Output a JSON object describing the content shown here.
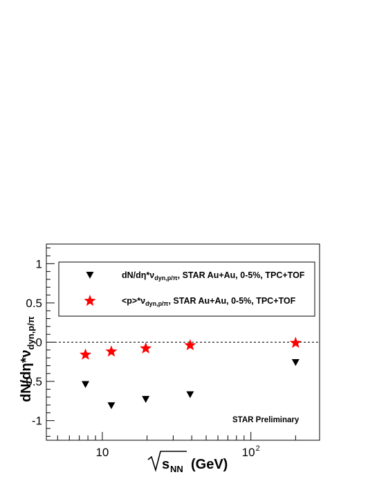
{
  "chart_data": {
    "type": "scatter",
    "xscale": "log",
    "xlim": [
      4.2,
      290
    ],
    "ylim": [
      -1.25,
      1.25
    ],
    "xticks": [
      {
        "value": 10,
        "label": "10"
      },
      {
        "value": 100,
        "label": "10",
        "exp": "2"
      }
    ],
    "yticks": [
      {
        "value": 1,
        "label": "1"
      },
      {
        "value": 0.5,
        "label": "0.5"
      },
      {
        "value": 0,
        "label": "0"
      },
      {
        "value": -0.5,
        "label": "-0.5"
      },
      {
        "value": -1,
        "label": "-1"
      }
    ],
    "xlabel": {
      "root": "s",
      "sub": "NN",
      "unit": "(GeV)"
    },
    "ylabel": {
      "main": "dN/dη*ν",
      "sub": "dyn,p/π"
    },
    "reference_line": {
      "y": 0,
      "style": "dashed"
    },
    "series": [
      {
        "name": {
          "main": "dN/dη*ν",
          "sub": "dyn,p/π",
          "tail": ", STAR Au+Au, 0-5%, TPC+TOF"
        },
        "marker": "triangle-down",
        "color": "#000000",
        "x": [
          7.7,
          11.5,
          19.6,
          39,
          200
        ],
        "y": [
          -0.54,
          -0.81,
          -0.73,
          -0.67,
          -0.26
        ]
      },
      {
        "name": {
          "main": "<p>*ν",
          "sub": "dyn,p/π",
          "tail": ", STAR Au+Au, 0-5%, TPC+TOF"
        },
        "marker": "star",
        "color": "#ff0000",
        "x": [
          7.7,
          11.5,
          19.6,
          39,
          200
        ],
        "y": [
          -0.16,
          -0.12,
          -0.08,
          -0.04,
          -0.01
        ]
      }
    ],
    "legend_position": "top",
    "annotations": [
      {
        "text": "STAR Preliminary",
        "position": "bottom-right"
      }
    ]
  }
}
